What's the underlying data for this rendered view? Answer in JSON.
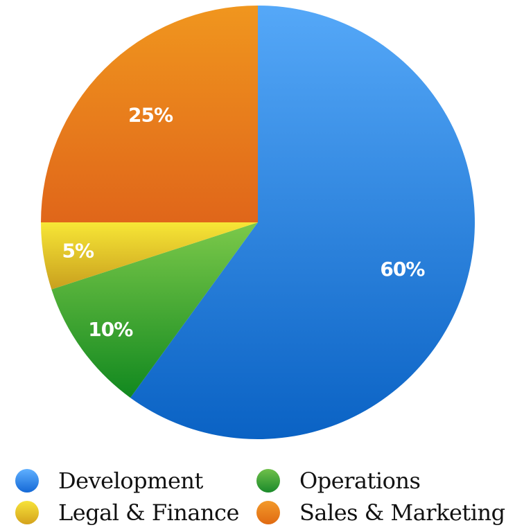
{
  "chart_data": {
    "type": "pie",
    "categories": [
      "Development",
      "Operations",
      "Legal & Finance",
      "Sales & Marketing"
    ],
    "values": [
      60,
      10,
      5,
      25
    ],
    "value_labels": [
      "60%",
      "10%",
      "5%",
      "25%"
    ],
    "unit": "%",
    "title": "",
    "legend": "bottom",
    "colors": {
      "Development": [
        "#55a8f8",
        "#0a62c4"
      ],
      "Operations": [
        "#7cc94a",
        "#11881f"
      ],
      "Legal & Finance": [
        "#f7e636",
        "#c9a01e"
      ],
      "Sales & Marketing": [
        "#f0961e",
        "#e0661a"
      ]
    },
    "legend_colors": {
      "Development": [
        "#5fb0ff",
        "#1569d6"
      ],
      "Operations": [
        "#6fc04a",
        "#1b8a2b"
      ],
      "Legal & Finance": [
        "#f7e33a",
        "#d4a21c"
      ],
      "Sales & Marketing": [
        "#f39a2a",
        "#e06a12"
      ]
    }
  },
  "legend": {
    "items": [
      {
        "label": "Development"
      },
      {
        "label": "Operations"
      },
      {
        "label": "Legal & Finance"
      },
      {
        "label": "Sales & Marketing"
      }
    ]
  }
}
